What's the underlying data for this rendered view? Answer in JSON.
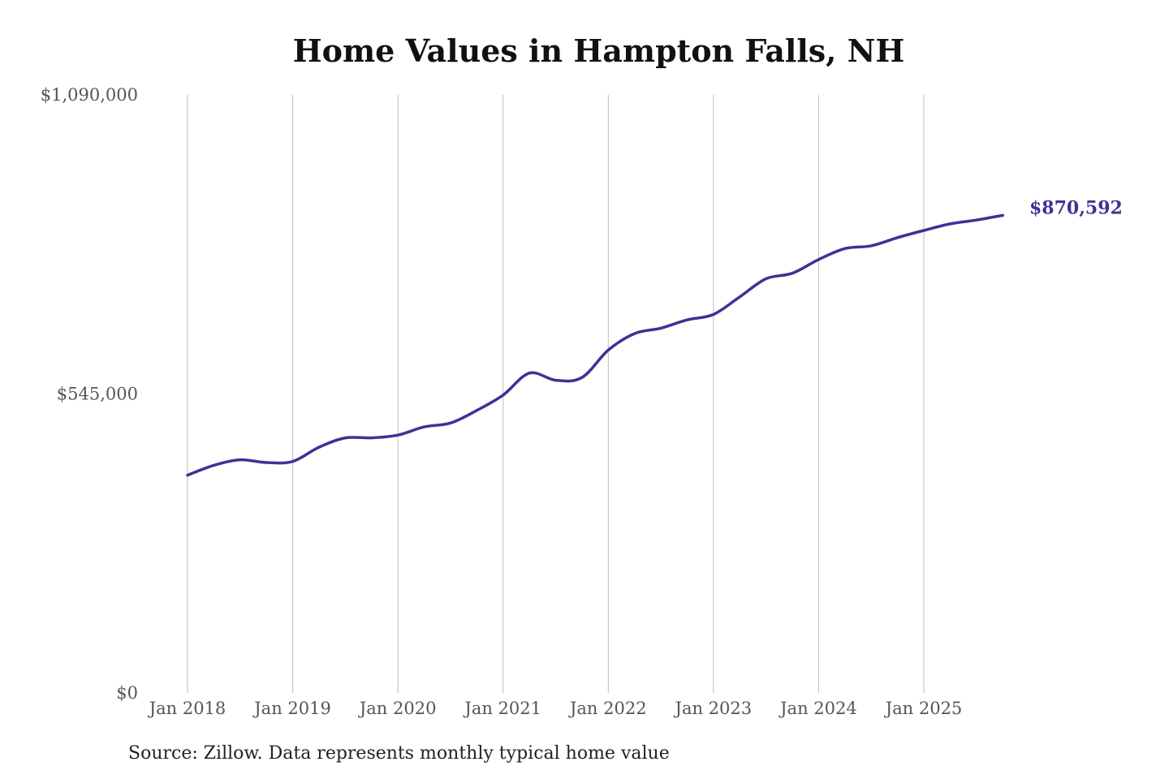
{
  "colors": {
    "series": "#3a3396",
    "grid": "#bdbdbd",
    "text": "#555555"
  },
  "source": "Source: Zillow. Data represents monthly typical home value",
  "chart_data": {
    "type": "line",
    "title": "Home Values in Hampton Falls, NH",
    "xlabel": "",
    "ylabel": "",
    "ylim": [
      0,
      1090000
    ],
    "y_ticks": [
      {
        "value": 0,
        "label": "$0"
      },
      {
        "value": 545000,
        "label": "$545,000"
      },
      {
        "value": 1090000,
        "label": "$1,090,000"
      }
    ],
    "x_ticks": [
      "Jan 2018",
      "Jan 2019",
      "Jan 2020",
      "Jan 2021",
      "Jan 2022",
      "Jan 2023",
      "Jan 2024",
      "Jan 2025"
    ],
    "grid": "vertical",
    "end_label": "$870,592",
    "series": [
      {
        "x": [
          "2018-01",
          "2018-04",
          "2018-07",
          "2018-10",
          "2019-01",
          "2019-04",
          "2019-07",
          "2019-10",
          "2020-01",
          "2020-04",
          "2020-07",
          "2020-10",
          "2021-01",
          "2021-04",
          "2021-07",
          "2021-10",
          "2022-01",
          "2022-04",
          "2022-07",
          "2022-10",
          "2023-01",
          "2023-04",
          "2023-07",
          "2023-10",
          "2024-01",
          "2024-04",
          "2024-07",
          "2024-10",
          "2025-01",
          "2025-04",
          "2025-07",
          "2025-10"
        ],
        "values": [
          397000,
          415000,
          425000,
          420000,
          422000,
          448000,
          465000,
          465000,
          470000,
          485000,
          492000,
          515000,
          543000,
          583000,
          570000,
          575000,
          625000,
          655000,
          665000,
          680000,
          690000,
          722000,
          755000,
          765000,
          790000,
          810000,
          815000,
          830000,
          843000,
          855000,
          862000,
          870592
        ]
      }
    ]
  }
}
